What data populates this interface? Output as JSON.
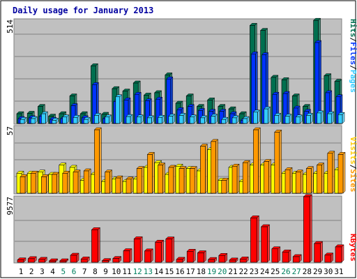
{
  "chart_data": {
    "type": "bar",
    "title": "Daily usage for January 2013",
    "x": [
      "1",
      "2",
      "3",
      "4",
      "5",
      "6",
      "7",
      "8",
      "9",
      "10",
      "11",
      "12",
      "13",
      "14",
      "15",
      "16",
      "17",
      "18",
      "19",
      "20",
      "21",
      "22",
      "23",
      "24",
      "25",
      "26",
      "27",
      "28",
      "29",
      "30",
      "31"
    ],
    "weekend_days": [
      "5",
      "6",
      "12",
      "13",
      "19",
      "20",
      "26",
      "27"
    ],
    "panels": [
      {
        "id": "hits",
        "ymax_label": "514",
        "ymax": 514,
        "series": [
          {
            "name": "Hits",
            "color": "#006f4f",
            "values": [
              48,
              50,
              84,
              36,
              48,
              136,
              48,
              285,
              45,
              172,
              160,
              200,
              140,
              152,
              240,
              100,
              136,
              84,
              116,
              84,
              72,
              48,
              485,
              460,
              228,
              216,
              136,
              84,
              510,
              236,
              208
            ]
          },
          {
            "name": "Files",
            "color": "#0033ff",
            "values": [
              24,
              28,
              36,
              20,
              24,
              88,
              28,
              192,
              24,
              108,
              116,
              144,
              112,
              120,
              220,
              68,
              84,
              64,
              60,
              60,
              48,
              16,
              344,
              340,
              144,
              148,
              76,
              60,
              400,
              152,
              132
            ]
          },
          {
            "name": "Pages",
            "color": "#33ccff",
            "values": [
              20,
              24,
              48,
              16,
              32,
              30,
              20,
              40,
              32,
              132,
              34,
              32,
              28,
              30,
              36,
              40,
              32,
              28,
              36,
              20,
              28,
              24,
              56,
              72,
              40,
              36,
              32,
              40,
              52,
              48,
              44
            ]
          }
        ]
      },
      {
        "id": "visits",
        "ymax_label": "57",
        "ymax": 57,
        "series": [
          {
            "name": "Visits",
            "color": "#ffff00",
            "values": [
              17,
              17,
              18,
              16,
              24,
              22,
              11,
              16,
              10,
              12,
              10,
              12,
              22,
              26,
              16,
              23,
              21,
              19,
              37,
              11,
              22,
              10,
              24,
              24,
              24,
              17,
              17,
              16,
              17,
              17,
              20
            ]
          },
          {
            "name": "Sites",
            "color": "#ff9900",
            "values": [
              14,
              17,
              14,
              16,
              17,
              18,
              19,
              54,
              18,
              13,
              12,
              21,
              33,
              24,
              22,
              21,
              21,
              40,
              44,
              11,
              23,
              26,
              54,
              27,
              52,
              20,
              18,
              21,
              24,
              34,
              33
            ]
          }
        ]
      },
      {
        "id": "kbytes",
        "ymax_label": "9577",
        "ymax": 9577,
        "series": [
          {
            "name": "KBytes",
            "color": "#ff0000",
            "values": [
              340,
              520,
              420,
              200,
              200,
              1020,
              480,
              4750,
              240,
              550,
              1680,
              3420,
              1650,
              2930,
              3400,
              420,
              1600,
              1380,
              400,
              990,
              320,
              480,
              6480,
              5190,
              1960,
              1500,
              820,
              9577,
              2740,
              1050,
              2250
            ]
          }
        ]
      }
    ],
    "legend_side": "right",
    "grid": true
  }
}
